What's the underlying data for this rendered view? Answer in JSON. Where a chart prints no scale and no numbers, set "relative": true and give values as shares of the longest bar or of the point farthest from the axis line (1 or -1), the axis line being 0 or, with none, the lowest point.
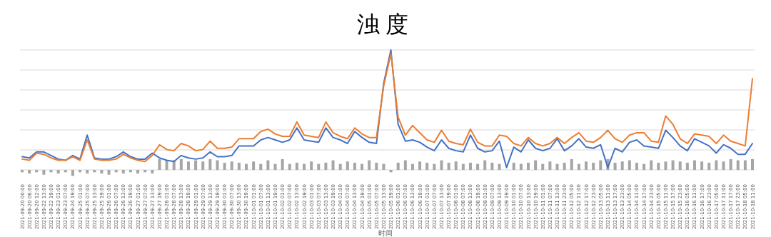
{
  "chart_data": {
    "type": "line",
    "title": "浊度",
    "xlabel": "时间",
    "relative": true,
    "grid": "y",
    "categories": [
      "2021-09-20 00:00",
      "2021-09-20 06:00",
      "2021-09-20 12:00",
      "2021-09-22 13:00",
      "2021-09-22 19:00",
      "2021-09-23 01:00",
      "2021-09-23 07:00",
      "2021-09-24 19:00",
      "2021-09-25 01:00",
      "2021-09-25 07:00",
      "2021-09-25 13:00",
      "2021-09-25 19:00",
      "2021-09-26 01:00",
      "2021-09-26 07:00",
      "2021-09-26 13:00",
      "2021-09-26 19:00",
      "2021-09-27 01:00",
      "2021-09-27 07:00",
      "2021-09-27 13:00",
      "2021-09-27 19:00",
      "2021-09-28 01:00",
      "2021-09-28 07:00",
      "2021-09-28 13:00",
      "2021-09-28 19:00",
      "2021-09-29 01:00",
      "2021-09-29 07:00",
      "2021-09-29 13:00",
      "2021-09-29 19:00",
      "2021-09-30 01:00",
      "2021-09-30 07:00",
      "2021-09-30 13:00",
      "2021-09-30 19:00",
      "2021-10-01 01:00",
      "2021-10-01 07:00",
      "2021-10-01 13:00",
      "2021-10-01 19:00",
      "2021-10-02 01:00",
      "2021-10-02 07:00",
      "2021-10-02 13:00",
      "2021-10-02 19:00",
      "2021-10-03 01:00",
      "2021-10-03 07:00",
      "2021-10-03 13:00",
      "2021-10-03 19:00",
      "2021-10-04 01:00",
      "2021-10-04 07:00",
      "2021-10-04 13:00",
      "2021-10-04 19:00",
      "2021-10-05 01:00",
      "2021-10-05 07:00",
      "2021-10-05 13:00",
      "2021-10-05 19:00",
      "2021-10-06 01:00",
      "2021-10-06 07:00",
      "2021-10-06 13:00",
      "2021-10-06 19:00",
      "2021-10-07 01:00",
      "2021-10-07 07:00",
      "2021-10-07 13:00",
      "2021-10-07 19:00",
      "2021-10-08 01:00",
      "2021-10-08 07:00",
      "2021-10-08 13:00",
      "2021-10-08 19:00",
      "2021-10-09 01:00",
      "2021-10-09 07:00",
      "2021-10-09 13:00",
      "2021-10-09 19:00",
      "2021-10-10 01:00",
      "2021-10-10 07:00",
      "2021-10-10 13:00",
      "2021-10-10 19:00",
      "2021-10-11 01:00",
      "2021-10-11 07:00",
      "2021-10-11 13:00",
      "2021-10-11 23:00",
      "2021-10-12 05:00",
      "2021-10-12 11:00",
      "2021-10-12 17:00",
      "2021-10-12 23:00",
      "2021-10-13 05:00",
      "2021-10-13 11:00",
      "2021-10-13 17:00",
      "2021-10-13 23:00",
      "2021-10-14 05:00",
      "2021-10-14 11:00",
      "2021-10-14 17:00",
      "2021-10-14 23:00",
      "2021-10-15 05:00",
      "2021-10-15 11:00",
      "2021-10-15 17:00",
      "2021-10-15 23:00",
      "2021-10-16 05:00",
      "2021-10-16 11:00",
      "2021-10-16 17:00",
      "2021-10-16 23:00",
      "2021-10-17 05:00",
      "2021-10-17 11:00",
      "2021-10-17 17:00",
      "2021-10-17 23:00",
      "2021-10-18 05:00",
      "2021-10-18 11:00"
    ],
    "series": [
      {
        "type": "bar",
        "color": "#a6a6a6",
        "values": [
          -0.02,
          -0.03,
          -0.02,
          -0.04,
          -0.02,
          -0.03,
          -0.02,
          -0.05,
          -0.02,
          -0.03,
          -0.02,
          -0.03,
          -0.04,
          -0.02,
          -0.03,
          -0.02,
          -0.03,
          -0.02,
          -0.03,
          0.09,
          0.08,
          0.08,
          0.09,
          0.07,
          0.08,
          0.07,
          0.09,
          0.08,
          0.06,
          0.07,
          0.06,
          0.05,
          0.07,
          0.05,
          0.08,
          0.05,
          0.09,
          0.05,
          0.06,
          0.05,
          0.07,
          0.05,
          0.06,
          0.08,
          0.05,
          0.07,
          0.06,
          0.05,
          0.08,
          0.06,
          0.05,
          -0.02,
          0.06,
          0.08,
          0.05,
          0.07,
          0.06,
          0.05,
          0.08,
          0.06,
          0.07,
          0.05,
          0.06,
          0.05,
          0.08,
          0.06,
          0.05,
          null,
          0.06,
          0.05,
          0.06,
          0.08,
          0.05,
          0.07,
          0.05,
          0.06,
          0.09,
          0.05,
          0.07,
          0.06,
          0.08,
          0.09,
          0.06,
          0.07,
          0.08,
          0.06,
          0.05,
          0.08,
          0.06,
          0.07,
          0.08,
          0.07,
          0.06,
          0.08,
          0.07,
          0.06,
          0.08,
          0.07,
          0.09,
          0.08,
          0.08,
          0.09
        ]
      },
      {
        "color": "#4472c4",
        "values": [
          0.11,
          0.1,
          0.15,
          0.15,
          0.12,
          0.09,
          0.08,
          0.12,
          0.09,
          0.29,
          0.1,
          0.09,
          0.09,
          0.11,
          0.15,
          0.11,
          0.09,
          0.09,
          0.14,
          0.1,
          0.08,
          0.07,
          0.12,
          0.1,
          0.09,
          0.1,
          0.15,
          0.11,
          0.11,
          0.12,
          0.2,
          0.2,
          0.2,
          0.25,
          0.27,
          0.25,
          0.23,
          0.25,
          0.35,
          0.25,
          0.24,
          0.23,
          0.35,
          0.27,
          0.25,
          0.22,
          0.32,
          0.27,
          0.23,
          0.22,
          0.72,
          1.0,
          0.38,
          0.24,
          0.25,
          0.23,
          0.19,
          0.16,
          0.25,
          0.18,
          0.16,
          0.15,
          0.29,
          0.18,
          0.15,
          0.16,
          0.24,
          0.02,
          0.19,
          0.15,
          0.25,
          0.18,
          0.16,
          0.18,
          0.26,
          0.16,
          0.2,
          0.26,
          0.19,
          0.18,
          0.21,
          0.02,
          0.18,
          0.15,
          0.23,
          0.25,
          0.2,
          0.19,
          0.18,
          0.33,
          0.27,
          0.2,
          0.16,
          0.26,
          0.23,
          0.2,
          0.14,
          0.21,
          0.18,
          0.13,
          0.13,
          0.22
        ]
      },
      {
        "color": "#ed7d31",
        "values": [
          0.09,
          0.08,
          0.14,
          0.13,
          0.1,
          0.08,
          0.08,
          0.11,
          0.08,
          0.25,
          0.09,
          0.08,
          0.08,
          0.09,
          0.13,
          0.1,
          0.08,
          0.07,
          0.12,
          0.21,
          0.17,
          0.16,
          0.22,
          0.2,
          0.16,
          0.17,
          0.24,
          0.18,
          0.18,
          0.19,
          0.26,
          0.26,
          0.26,
          0.32,
          0.34,
          0.3,
          0.28,
          0.28,
          0.4,
          0.29,
          0.28,
          0.27,
          0.4,
          0.31,
          0.28,
          0.26,
          0.35,
          0.3,
          0.27,
          0.27,
          0.7,
          0.97,
          0.44,
          0.29,
          0.37,
          0.31,
          0.25,
          0.23,
          0.33,
          0.24,
          0.22,
          0.21,
          0.34,
          0.23,
          0.2,
          0.2,
          0.29,
          0.28,
          0.22,
          0.2,
          0.27,
          0.22,
          0.2,
          0.22,
          0.27,
          0.22,
          0.27,
          0.31,
          0.24,
          0.23,
          0.27,
          0.33,
          0.26,
          0.23,
          0.29,
          0.31,
          0.31,
          0.24,
          0.23,
          0.45,
          0.38,
          0.26,
          0.22,
          0.3,
          0.29,
          0.28,
          0.22,
          0.29,
          0.24,
          0.22,
          0.2,
          0.76
        ]
      }
    ]
  }
}
